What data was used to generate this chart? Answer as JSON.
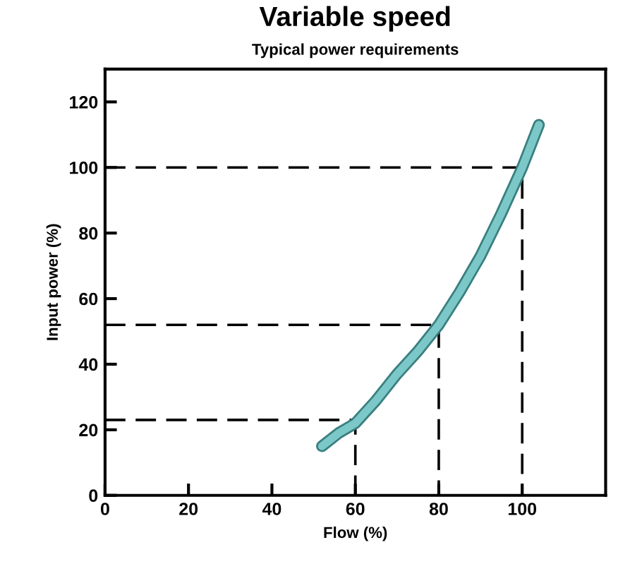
{
  "chart_data": {
    "type": "line",
    "title": "Variable speed",
    "subtitle": "Typical power requirements",
    "xlabel": "Flow (%)",
    "ylabel": "Input power (%)",
    "xlim": [
      0,
      120
    ],
    "xticks": [
      0,
      20,
      40,
      60,
      80,
      100
    ],
    "ylim": [
      0,
      130
    ],
    "yticks": [
      0,
      20,
      40,
      60,
      80,
      100,
      120
    ],
    "grid": false,
    "legend": false,
    "marker": "none",
    "series": [
      {
        "color": "#7cc8c8",
        "line_style": "solid",
        "x": [
          52,
          56,
          60,
          65,
          70,
          75,
          80,
          85,
          90,
          95,
          100,
          104
        ],
        "values": [
          15,
          19,
          22,
          29,
          37,
          44,
          52,
          62,
          73,
          86,
          100,
          113
        ]
      },
      {
        "color": "#000000",
        "line_style": "dashed",
        "x": [
          0,
          100,
          100
        ],
        "values": [
          100,
          100,
          0
        ]
      },
      {
        "color": "#000000",
        "line_style": "dashed",
        "x": [
          0,
          80,
          80
        ],
        "values": [
          52,
          52,
          0
        ]
      },
      {
        "color": "#000000",
        "line_style": "dashed",
        "x": [
          0,
          60,
          60
        ],
        "values": [
          23,
          23,
          0
        ]
      }
    ]
  }
}
